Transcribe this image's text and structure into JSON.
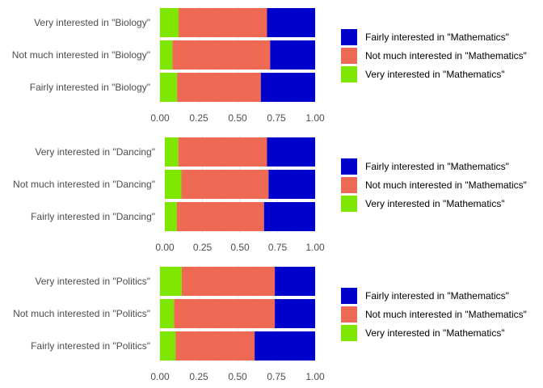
{
  "chart_data": [
    {
      "type": "bar",
      "orientation": "horizontal",
      "stacked": true,
      "categories": [
        "Very interested in \"Biology\"",
        "Not much interested in \"Biology\"",
        "Fairly interested in \"Biology\""
      ],
      "x_ticks": [
        "0.00",
        "0.25",
        "0.50",
        "0.75",
        "1.00"
      ],
      "xlim": [
        0,
        1
      ],
      "series": [
        {
          "name": "Very interested in \"Mathematics\"",
          "values": [
            0.12,
            0.08,
            0.11
          ]
        },
        {
          "name": "Not much interested in \"Mathematics\"",
          "values": [
            0.57,
            0.63,
            0.54
          ]
        },
        {
          "name": "Fairly interested in \"Mathematics\"",
          "values": [
            0.31,
            0.29,
            0.35
          ]
        }
      ],
      "legend": [
        "Fairly interested in \"Mathematics\"",
        "Not much interested in \"Mathematics\"",
        "Very interested in \"Mathematics\""
      ],
      "legend_placement": "right",
      "grid": true
    },
    {
      "type": "bar",
      "orientation": "horizontal",
      "stacked": true,
      "categories": [
        "Very interested in \"Dancing\"",
        "Not much interested in \"Dancing\"",
        "Fairly interested in \"Dancing\""
      ],
      "x_ticks": [
        "0.00",
        "0.25",
        "0.50",
        "0.75",
        "1.00"
      ],
      "xlim": [
        0,
        1
      ],
      "series": [
        {
          "name": "Very interested in \"Mathematics\"",
          "values": [
            0.09,
            0.11,
            0.08
          ]
        },
        {
          "name": "Not much interested in \"Mathematics\"",
          "values": [
            0.59,
            0.58,
            0.58
          ]
        },
        {
          "name": "Fairly interested in \"Mathematics\"",
          "values": [
            0.32,
            0.31,
            0.34
          ]
        }
      ],
      "legend": [
        "Fairly interested in \"Mathematics\"",
        "Not much interested in \"Mathematics\"",
        "Very interested in \"Mathematics\""
      ],
      "legend_placement": "right",
      "grid": true
    },
    {
      "type": "bar",
      "orientation": "horizontal",
      "stacked": true,
      "categories": [
        "Very interested in \"Politics\"",
        "Not much interested in \"Politics\"",
        "Fairly interested in \"Politics\""
      ],
      "x_ticks": [
        "0.00",
        "0.25",
        "0.50",
        "0.75",
        "1.00"
      ],
      "xlim": [
        0,
        1
      ],
      "series": [
        {
          "name": "Very interested in \"Mathematics\"",
          "values": [
            0.14,
            0.09,
            0.1
          ]
        },
        {
          "name": "Not much interested in \"Mathematics\"",
          "values": [
            0.6,
            0.65,
            0.51
          ]
        },
        {
          "name": "Fairly interested in \"Mathematics\"",
          "values": [
            0.26,
            0.26,
            0.39
          ]
        }
      ],
      "legend": [
        "Fairly interested in \"Mathematics\"",
        "Not much interested in \"Mathematics\"",
        "Very interested in \"Mathematics\""
      ],
      "legend_placement": "right",
      "grid": true
    }
  ],
  "colors": {
    "Very interested in \"Mathematics\"": "#7fe600",
    "Not much interested in \"Mathematics\"": "#ee6a55",
    "Fairly interested in \"Mathematics\"": "#0000cc",
    "grid": "#ebebeb",
    "tick_text": "#4d4d4d"
  }
}
